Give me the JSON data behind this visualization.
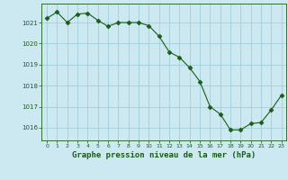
{
  "x": [
    0,
    1,
    2,
    3,
    4,
    5,
    6,
    7,
    8,
    9,
    10,
    11,
    12,
    13,
    14,
    15,
    16,
    17,
    18,
    19,
    20,
    21,
    22,
    23
  ],
  "y": [
    1021.2,
    1021.5,
    1021.0,
    1021.4,
    1021.45,
    1021.1,
    1020.82,
    1021.0,
    1021.0,
    1021.0,
    1020.85,
    1020.35,
    1019.6,
    1019.35,
    1018.85,
    1018.2,
    1017.0,
    1016.65,
    1015.9,
    1015.9,
    1016.2,
    1016.25,
    1016.85,
    1017.55
  ],
  "line_color": "#1a5c1a",
  "marker": "D",
  "marker_size": 2.5,
  "background_color": "#cce8f0",
  "grid_color": "#99ccd6",
  "xlabel": "Graphe pression niveau de la mer (hPa)",
  "xlabel_color": "#1a5c1a",
  "tick_color": "#1a5c1a",
  "label_color": "#1a5c1a",
  "ylim": [
    1015.4,
    1021.9
  ],
  "yticks": [
    1016,
    1017,
    1018,
    1019,
    1020,
    1021
  ],
  "xlim": [
    -0.5,
    23.5
  ],
  "xticks": [
    0,
    1,
    2,
    3,
    4,
    5,
    6,
    7,
    8,
    9,
    10,
    11,
    12,
    13,
    14,
    15,
    16,
    17,
    18,
    19,
    20,
    21,
    22,
    23
  ],
  "xtick_labels": [
    "0",
    "1",
    "2",
    "3",
    "4",
    "5",
    "6",
    "7",
    "8",
    "9",
    "10",
    "11",
    "12",
    "13",
    "14",
    "15",
    "16",
    "17",
    "18",
    "19",
    "20",
    "21",
    "22",
    "23"
  ]
}
